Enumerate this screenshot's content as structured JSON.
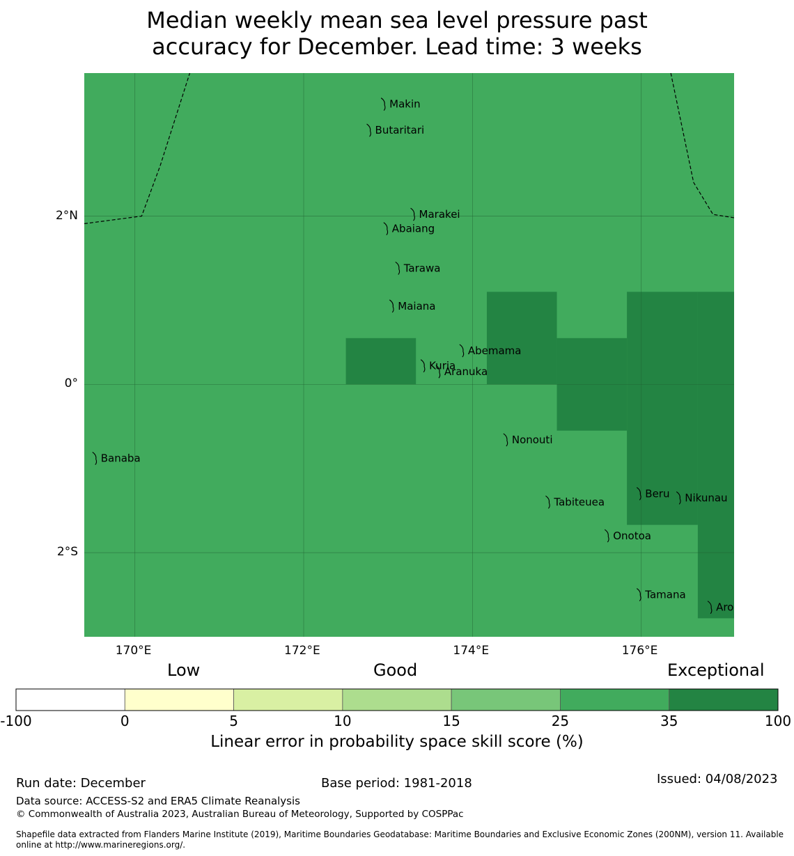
{
  "title": {
    "line1": "Median weekly mean sea level pressure past",
    "line2": "accuracy for December. Lead time: 3 weeks"
  },
  "map": {
    "lon_range": [
      169.4,
      177.1
    ],
    "lat_range": [
      -3.0,
      3.7
    ],
    "background_color": "#41ab5d",
    "high_color": "#238443",
    "x_ticks": [
      {
        "value": 170,
        "label": "170°E"
      },
      {
        "value": 172,
        "label": "172°E"
      },
      {
        "value": 174,
        "label": "174°E"
      },
      {
        "value": 176,
        "label": "176°E"
      }
    ],
    "y_ticks": [
      {
        "value": 2,
        "label": "2°N"
      },
      {
        "value": 0,
        "label": "0°"
      },
      {
        "value": -2,
        "label": "2°S"
      }
    ],
    "exceptional_cells": [
      {
        "lon": [
          172.5,
          173.33
        ],
        "lat": [
          0.0,
          0.55
        ]
      },
      {
        "lon": [
          174.17,
          175.0
        ],
        "lat": [
          0.0,
          1.1
        ]
      },
      {
        "lon": [
          175.0,
          175.83
        ],
        "lat": [
          -0.55,
          0.55
        ]
      },
      {
        "lon": [
          175.83,
          176.67
        ],
        "lat": [
          -1.67,
          1.1
        ]
      },
      {
        "lon": [
          176.67,
          177.1
        ],
        "lat": [
          -2.78,
          1.1
        ]
      }
    ],
    "islands": [
      {
        "name": "Makin",
        "lon": 172.95,
        "lat": 3.33
      },
      {
        "name": "Butaritari",
        "lon": 172.78,
        "lat": 3.02
      },
      {
        "name": "Marakei",
        "lon": 173.3,
        "lat": 2.02
      },
      {
        "name": "Abaiang",
        "lon": 172.98,
        "lat": 1.85
      },
      {
        "name": "Tarawa",
        "lon": 173.12,
        "lat": 1.38
      },
      {
        "name": "Maiana",
        "lon": 173.05,
        "lat": 0.93
      },
      {
        "name": "Abemama",
        "lon": 173.88,
        "lat": 0.4
      },
      {
        "name": "Kuria",
        "lon": 173.42,
        "lat": 0.22
      },
      {
        "name": "Aranuka",
        "lon": 173.6,
        "lat": 0.15
      },
      {
        "name": "Nonouti",
        "lon": 174.4,
        "lat": -0.66
      },
      {
        "name": "Banaba",
        "lon": 169.53,
        "lat": -0.88
      },
      {
        "name": "Beru",
        "lon": 175.98,
        "lat": -1.3
      },
      {
        "name": "Tabiteuea",
        "lon": 174.9,
        "lat": -1.4
      },
      {
        "name": "Nikunau",
        "lon": 176.45,
        "lat": -1.35
      },
      {
        "name": "Onotoa",
        "lon": 175.6,
        "lat": -1.8
      },
      {
        "name": "Tamana",
        "lon": 175.98,
        "lat": -2.5
      },
      {
        "name": "Arorae",
        "lon": 176.82,
        "lat": -2.65
      }
    ],
    "eez_boundaries": [
      [
        [
          169.4,
          1.91
        ],
        [
          170.08,
          2.0
        ],
        [
          170.3,
          2.6
        ],
        [
          170.65,
          3.7
        ]
      ],
      [
        [
          176.35,
          3.7
        ],
        [
          176.62,
          2.4
        ],
        [
          176.85,
          2.02
        ],
        [
          177.1,
          1.98
        ]
      ]
    ]
  },
  "colorbar": {
    "categories": {
      "low": "Low",
      "good": "Good",
      "exceptional": "Exceptional"
    },
    "bounds": [
      "-100",
      "0",
      "5",
      "10",
      "15",
      "25",
      "35",
      "100"
    ],
    "colors": [
      "#ffffff",
      "#ffffcc",
      "#d9f0a3",
      "#addd8e",
      "#78c679",
      "#41ab5d",
      "#238443"
    ],
    "label": "Linear error in probability space skill score (%)"
  },
  "footer": {
    "run_date": "Run date: December",
    "base_period": "Base period: 1981-2018",
    "issued": "Issued: 04/08/2023",
    "data_source": "Data source: ACCESS-S2 and ERA5 Climate Reanalysis",
    "copyright": "© Commonwealth of Australia 2023, Australian Bureau of Meteorology, Supported by COSPPac",
    "shapefile_line1": "Shapefile data extracted from Flanders Marine Institute (2019), Maritime Boundaries Geodatabase: Maritime Boundaries and Exclusive Economic Zones (200NM), version 11. Available",
    "shapefile_line2": "online at http://www.marineregions.org/."
  }
}
